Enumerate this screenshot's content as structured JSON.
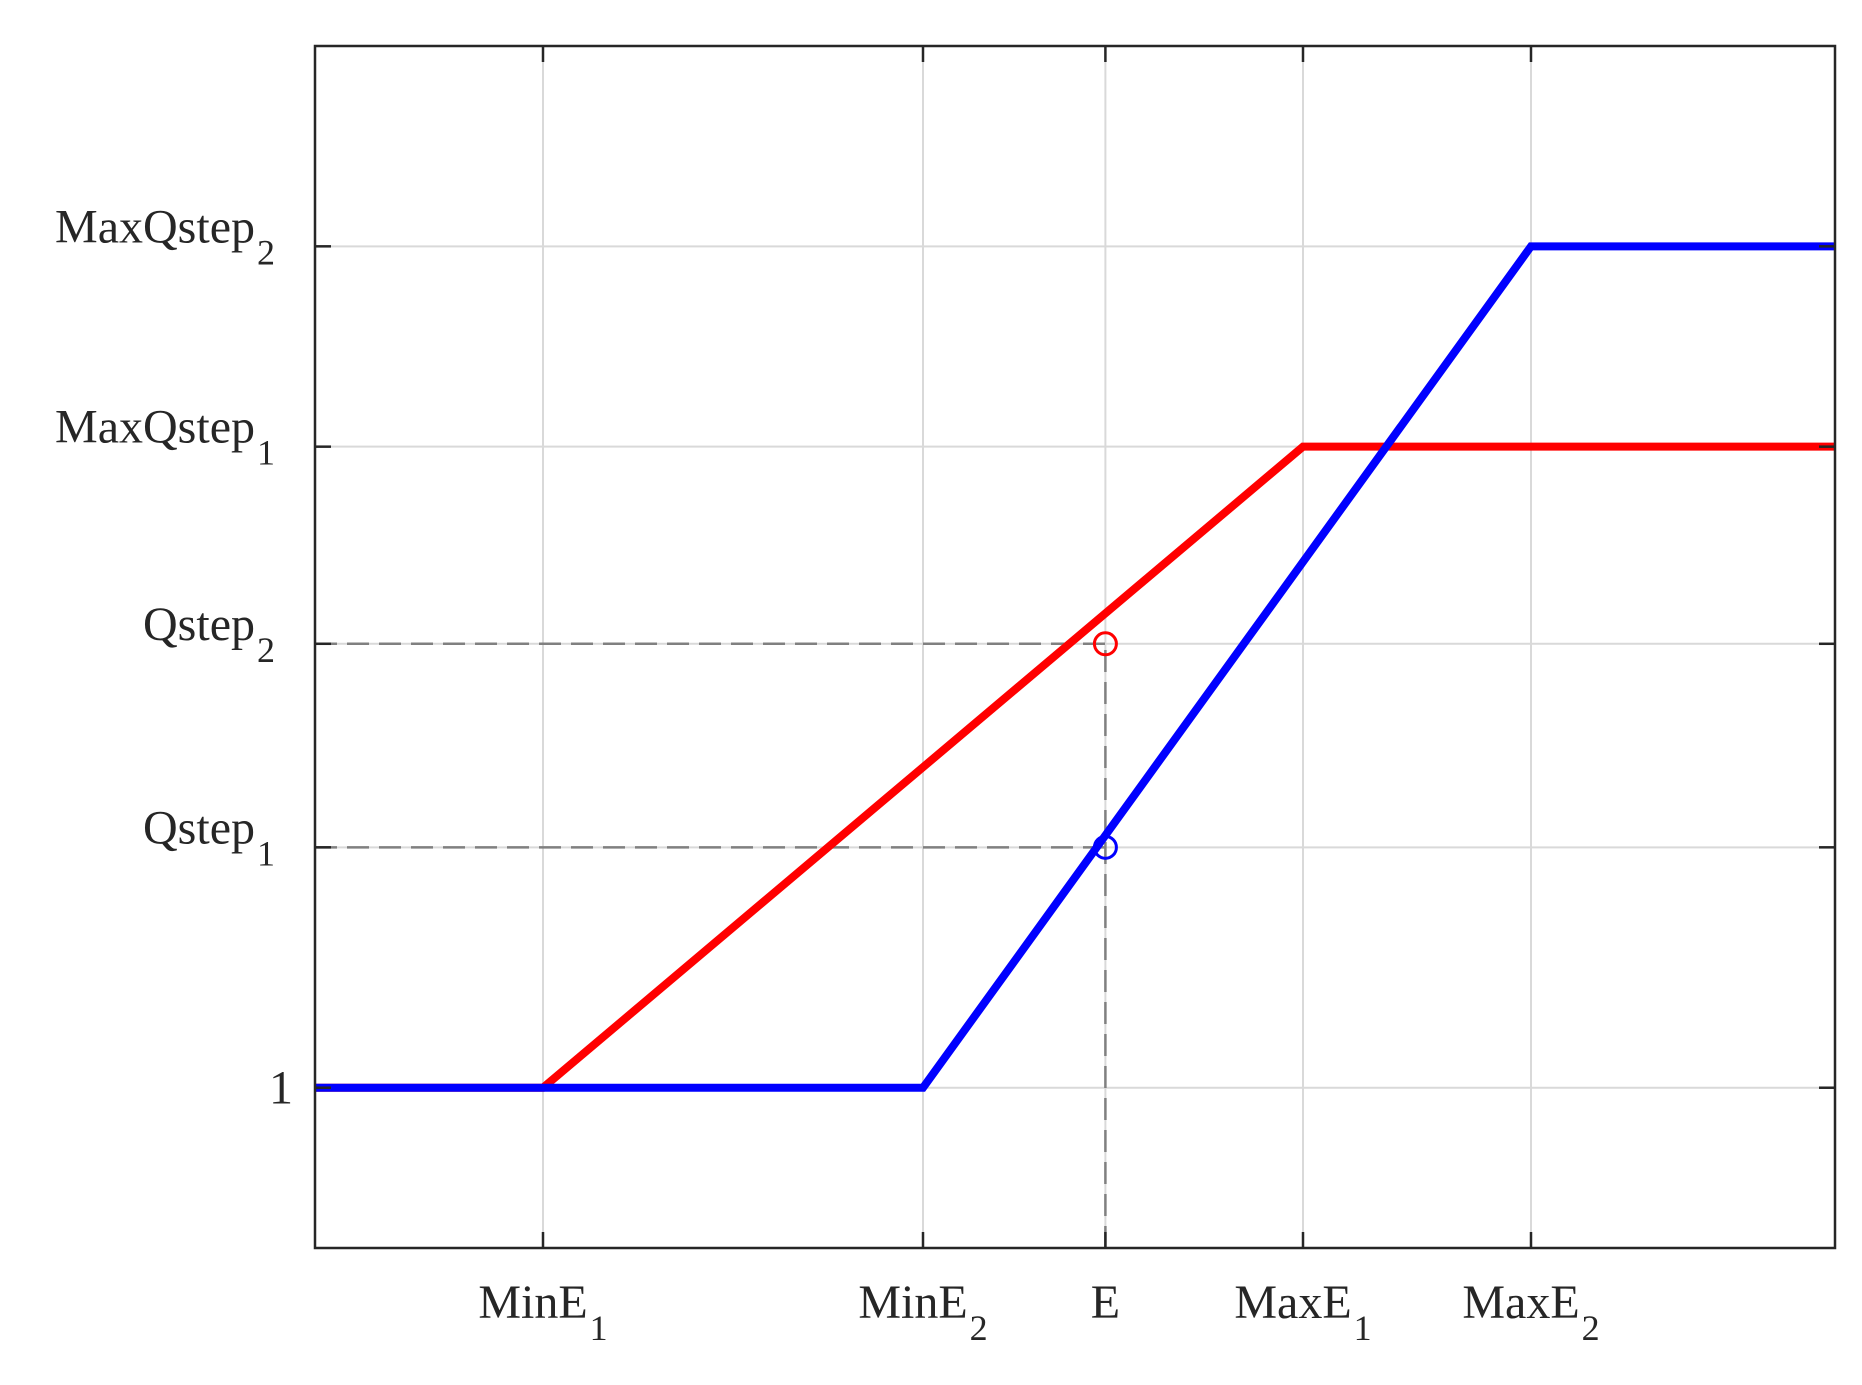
{
  "chart_data": {
    "type": "line",
    "title": "",
    "xlabel": "",
    "ylabel": "",
    "xlim": [
      0,
      10
    ],
    "ylim": [
      0,
      7.5
    ],
    "grid": true,
    "legend": "none",
    "x_ticks": [
      {
        "value": 1.5,
        "base": "MinE",
        "sub": "1"
      },
      {
        "value": 4.0,
        "base": "MinE",
        "sub": "2"
      },
      {
        "value": 5.2,
        "base": "E",
        "sub": ""
      },
      {
        "value": 6.5,
        "base": "MaxE",
        "sub": "1"
      },
      {
        "value": 8.0,
        "base": "MaxE",
        "sub": "2"
      }
    ],
    "y_ticks": [
      {
        "value": 1.0,
        "base": "1",
        "sub": ""
      },
      {
        "value": 2.5,
        "base": "Qstep",
        "sub": "1"
      },
      {
        "value": 3.77,
        "base": "Qstep",
        "sub": "2"
      },
      {
        "value": 5.0,
        "base": "MaxQstep",
        "sub": "1"
      },
      {
        "value": 6.25,
        "base": "MaxQstep",
        "sub": "2"
      }
    ],
    "series": [
      {
        "color": "#ff0000",
        "x": [
          0,
          1.5,
          6.5,
          10
        ],
        "y": [
          1.0,
          1.0,
          5.0,
          5.0
        ]
      },
      {
        "color": "#0000ff",
        "x": [
          0,
          4.0,
          8.0,
          10
        ],
        "y": [
          1.0,
          1.0,
          6.25,
          6.25
        ]
      }
    ],
    "markers": [
      {
        "x": 5.2,
        "y": 3.77,
        "color": "#ff0000",
        "shape": "circle-open"
      },
      {
        "x": 5.2,
        "y": 2.5,
        "color": "#0000ff",
        "shape": "circle-open"
      }
    ],
    "guides": [
      {
        "from": [
          0,
          3.77
        ],
        "to": [
          5.2,
          3.77
        ],
        "style": "dashed"
      },
      {
        "from": [
          0,
          2.5
        ],
        "to": [
          5.2,
          2.5
        ],
        "style": "dashed"
      },
      {
        "from": [
          5.2,
          0
        ],
        "to": [
          5.2,
          3.77
        ],
        "style": "dashed"
      }
    ],
    "colors": {
      "grid": "#d9d9d9",
      "axis": "#262626",
      "guide": "#808080"
    }
  }
}
